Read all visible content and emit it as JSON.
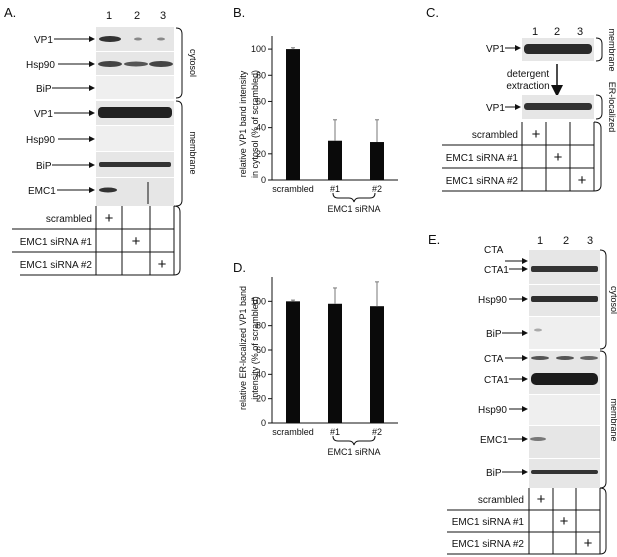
{
  "figure": {
    "panels": {
      "A": {
        "label": "A.",
        "lanes": [
          "1",
          "2",
          "3"
        ],
        "rows": [
          "VP1",
          "Hsp90",
          "BiP",
          "VP1",
          "Hsp90",
          "BiP",
          "EMC1"
        ],
        "groups": [
          "cytosol",
          "membrane"
        ]
      },
      "B": {
        "label": "B.",
        "ylabel_lines": [
          "relative VP1 band intensity",
          "in cytosol  (% of scrambled)"
        ],
        "xgroup": "EMC1 siRNA"
      },
      "C": {
        "label": "C.",
        "lanes": [
          "1",
          "2",
          "3"
        ],
        "rows": [
          "VP1",
          "VP1"
        ],
        "groups": [
          "membrane",
          "ER-localized"
        ],
        "arrow_lines": [
          "detergent",
          "extraction"
        ]
      },
      "D": {
        "label": "D.",
        "ylabel_lines": [
          "relative ER-localized VP1 band",
          "intensity  (% of scrambled)"
        ],
        "xgroup": "EMC1 siRNA"
      },
      "E": {
        "label": "E.",
        "lanes": [
          "1",
          "2",
          "3"
        ],
        "rows": [
          "CTA",
          "CTA1",
          "Hsp90",
          "BiP",
          "CTA",
          "CTA1",
          "Hsp90",
          "EMC1",
          "BiP"
        ],
        "groups": [
          "cytosol",
          "membrane"
        ]
      }
    },
    "conditions": [
      "scrambled",
      "EMC1 siRNA #1",
      "EMC1 siRNA #2"
    ],
    "plus_mark": "+"
  },
  "chart_data": [
    {
      "type": "bar",
      "panel": "B",
      "categories": [
        "scrambled",
        "#1",
        "#2"
      ],
      "values": [
        100,
        30,
        29
      ],
      "errors": [
        1,
        16,
        17
      ],
      "ylabel": "relative VP1 band intensity in cytosol  (% of scrambled)",
      "xlabel": "EMC1 siRNA",
      "ylim": [
        0,
        110
      ],
      "yticks": [
        0,
        20,
        40,
        60,
        80,
        100
      ],
      "tick_labels": [
        "0",
        "20",
        "40",
        "60",
        "80",
        "100"
      ],
      "grid": false
    },
    {
      "type": "bar",
      "panel": "D",
      "categories": [
        "scrambled",
        "#1",
        "#2"
      ],
      "values": [
        100,
        98,
        96
      ],
      "errors": [
        1,
        13,
        20
      ],
      "ylabel": "relative ER-localized VP1 band intensity  (% of scrambled)",
      "xlabel": "EMC1 siRNA",
      "ylim": [
        0,
        120
      ],
      "yticks": [
        0,
        20,
        40,
        60,
        80,
        100
      ],
      "tick_labels": [
        "0",
        "20",
        "40",
        "60",
        "80",
        "100"
      ],
      "grid": false
    }
  ]
}
